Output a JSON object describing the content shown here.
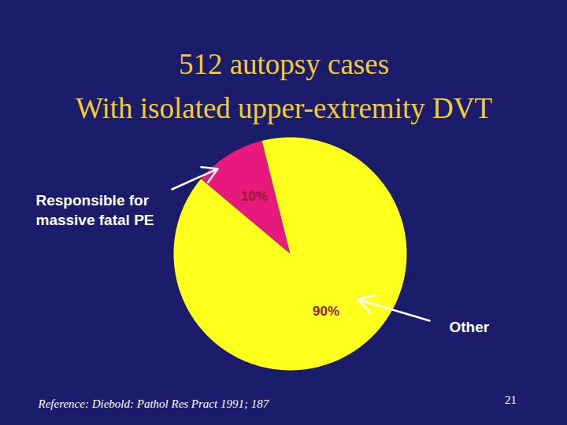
{
  "chart_data": {
    "type": "pie",
    "title": "512 autopsy cases",
    "subtitle": "With isolated upper-extremity DVT",
    "categories": [
      "Responsible for massive fatal PE",
      "Other"
    ],
    "values": [
      10,
      90
    ],
    "value_labels": [
      "10%",
      "90%"
    ],
    "data_labels": true,
    "colors": [
      "#e8197c",
      "#ffff1e"
    ],
    "source": "Reference: Diebold: Pathol Res Pract 1991; 187",
    "page": "21"
  }
}
